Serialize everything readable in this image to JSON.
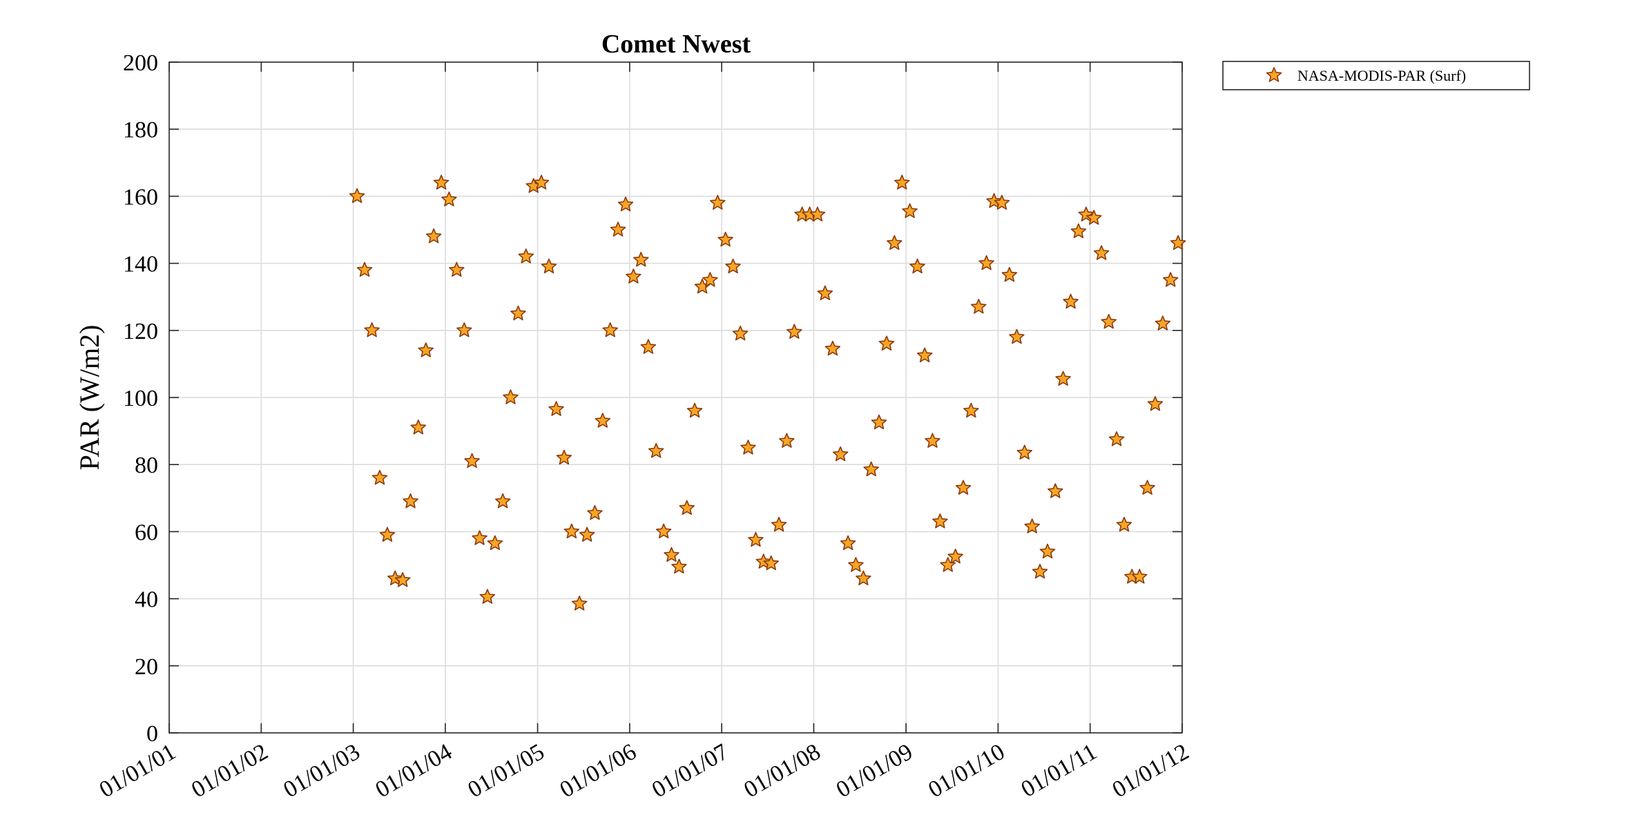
{
  "chart_data": {
    "type": "scatter",
    "title": "Comet Nwest",
    "xlabel": "",
    "ylabel": "PAR (W/m2)",
    "x_scale": "date",
    "xlim": [
      "2001-01-01",
      "2012-01-01"
    ],
    "ylim": [
      0,
      200
    ],
    "grid": true,
    "legend_position": "outside-top-right",
    "x_ticks": [
      {
        "value": "2001-01-01",
        "label": "01/01/01"
      },
      {
        "value": "2002-01-01",
        "label": "01/01/02"
      },
      {
        "value": "2003-01-01",
        "label": "01/01/03"
      },
      {
        "value": "2004-01-01",
        "label": "01/01/04"
      },
      {
        "value": "2005-01-01",
        "label": "01/01/05"
      },
      {
        "value": "2006-01-01",
        "label": "01/01/06"
      },
      {
        "value": "2007-01-01",
        "label": "01/01/07"
      },
      {
        "value": "2008-01-01",
        "label": "01/01/08"
      },
      {
        "value": "2009-01-01",
        "label": "01/01/09"
      },
      {
        "value": "2010-01-01",
        "label": "01/01/10"
      },
      {
        "value": "2011-01-01",
        "label": "01/01/11"
      },
      {
        "value": "2012-01-01",
        "label": "01/01/12"
      }
    ],
    "y_ticks": [
      {
        "value": 0,
        "label": "0"
      },
      {
        "value": 20,
        "label": "20"
      },
      {
        "value": 40,
        "label": "40"
      },
      {
        "value": 60,
        "label": "60"
      },
      {
        "value": 80,
        "label": "80"
      },
      {
        "value": 100,
        "label": "100"
      },
      {
        "value": 120,
        "label": "120"
      },
      {
        "value": 140,
        "label": "140"
      },
      {
        "value": 160,
        "label": "160"
      },
      {
        "value": 180,
        "label": "180"
      },
      {
        "value": 200,
        "label": "200"
      }
    ],
    "series": [
      {
        "name": "NASA-MODIS-PAR (Surf)",
        "marker": "star",
        "color": "#f7a525",
        "edge_color": "#8b3a0e",
        "points": [
          {
            "x": "2003-01-16",
            "y": 160
          },
          {
            "x": "2003-02-15",
            "y": 138
          },
          {
            "x": "2003-03-16",
            "y": 120
          },
          {
            "x": "2003-04-16",
            "y": 76
          },
          {
            "x": "2003-05-16",
            "y": 59
          },
          {
            "x": "2003-06-16",
            "y": 46
          },
          {
            "x": "2003-07-16",
            "y": 45.5
          },
          {
            "x": "2003-08-16",
            "y": 69
          },
          {
            "x": "2003-09-16",
            "y": 91
          },
          {
            "x": "2003-10-16",
            "y": 114
          },
          {
            "x": "2003-11-16",
            "y": 148
          },
          {
            "x": "2003-12-16",
            "y": 164
          },
          {
            "x": "2004-01-16",
            "y": 159
          },
          {
            "x": "2004-02-15",
            "y": 138
          },
          {
            "x": "2004-03-16",
            "y": 120
          },
          {
            "x": "2004-04-16",
            "y": 81
          },
          {
            "x": "2004-05-16",
            "y": 58
          },
          {
            "x": "2004-06-16",
            "y": 40.5
          },
          {
            "x": "2004-07-16",
            "y": 56.5
          },
          {
            "x": "2004-08-16",
            "y": 69
          },
          {
            "x": "2004-09-16",
            "y": 100
          },
          {
            "x": "2004-10-16",
            "y": 125
          },
          {
            "x": "2004-11-16",
            "y": 142
          },
          {
            "x": "2004-12-16",
            "y": 163
          },
          {
            "x": "2005-01-16",
            "y": 164
          },
          {
            "x": "2005-02-15",
            "y": 139
          },
          {
            "x": "2005-03-16",
            "y": 96.5
          },
          {
            "x": "2005-04-16",
            "y": 82
          },
          {
            "x": "2005-05-16",
            "y": 60
          },
          {
            "x": "2005-06-16",
            "y": 38.5
          },
          {
            "x": "2005-07-16",
            "y": 59
          },
          {
            "x": "2005-08-16",
            "y": 65.5
          },
          {
            "x": "2005-09-16",
            "y": 93
          },
          {
            "x": "2005-10-16",
            "y": 120
          },
          {
            "x": "2005-11-16",
            "y": 150
          },
          {
            "x": "2005-12-16",
            "y": 157.5
          },
          {
            "x": "2006-01-16",
            "y": 136
          },
          {
            "x": "2006-02-15",
            "y": 141
          },
          {
            "x": "2006-03-16",
            "y": 115
          },
          {
            "x": "2006-04-16",
            "y": 84
          },
          {
            "x": "2006-05-16",
            "y": 60
          },
          {
            "x": "2006-06-16",
            "y": 53
          },
          {
            "x": "2006-07-16",
            "y": 49.5
          },
          {
            "x": "2006-08-16",
            "y": 67
          },
          {
            "x": "2006-09-16",
            "y": 96
          },
          {
            "x": "2006-10-16",
            "y": 133
          },
          {
            "x": "2006-11-16",
            "y": 135
          },
          {
            "x": "2006-12-16",
            "y": 158
          },
          {
            "x": "2007-01-16",
            "y": 147
          },
          {
            "x": "2007-02-15",
            "y": 139
          },
          {
            "x": "2007-03-16",
            "y": 119
          },
          {
            "x": "2007-04-16",
            "y": 85
          },
          {
            "x": "2007-05-16",
            "y": 57.5
          },
          {
            "x": "2007-06-16",
            "y": 51
          },
          {
            "x": "2007-07-16",
            "y": 50.5
          },
          {
            "x": "2007-08-16",
            "y": 62
          },
          {
            "x": "2007-09-16",
            "y": 87
          },
          {
            "x": "2007-10-16",
            "y": 119.5
          },
          {
            "x": "2007-11-16",
            "y": 154.5
          },
          {
            "x": "2007-12-16",
            "y": 154.5
          },
          {
            "x": "2008-01-16",
            "y": 154.5
          },
          {
            "x": "2008-02-15",
            "y": 131
          },
          {
            "x": "2008-03-16",
            "y": 114.5
          },
          {
            "x": "2008-04-16",
            "y": 83
          },
          {
            "x": "2008-05-16",
            "y": 56.5
          },
          {
            "x": "2008-06-16",
            "y": 50
          },
          {
            "x": "2008-07-16",
            "y": 46
          },
          {
            "x": "2008-08-16",
            "y": 78.5
          },
          {
            "x": "2008-09-16",
            "y": 92.5
          },
          {
            "x": "2008-10-16",
            "y": 116
          },
          {
            "x": "2008-11-16",
            "y": 146
          },
          {
            "x": "2008-12-16",
            "y": 164
          },
          {
            "x": "2009-01-16",
            "y": 155.5
          },
          {
            "x": "2009-02-15",
            "y": 139
          },
          {
            "x": "2009-03-16",
            "y": 112.5
          },
          {
            "x": "2009-04-16",
            "y": 87
          },
          {
            "x": "2009-05-16",
            "y": 63
          },
          {
            "x": "2009-06-16",
            "y": 50
          },
          {
            "x": "2009-07-16",
            "y": 52.5
          },
          {
            "x": "2009-08-16",
            "y": 73
          },
          {
            "x": "2009-09-16",
            "y": 96
          },
          {
            "x": "2009-10-16",
            "y": 127
          },
          {
            "x": "2009-11-16",
            "y": 140
          },
          {
            "x": "2009-12-16",
            "y": 158.5
          },
          {
            "x": "2010-01-16",
            "y": 158
          },
          {
            "x": "2010-02-15",
            "y": 136.5
          },
          {
            "x": "2010-03-16",
            "y": 118
          },
          {
            "x": "2010-04-16",
            "y": 83.5
          },
          {
            "x": "2010-05-16",
            "y": 61.5
          },
          {
            "x": "2010-06-16",
            "y": 48
          },
          {
            "x": "2010-07-16",
            "y": 54
          },
          {
            "x": "2010-08-16",
            "y": 72
          },
          {
            "x": "2010-09-16",
            "y": 105.5
          },
          {
            "x": "2010-10-16",
            "y": 128.5
          },
          {
            "x": "2010-11-16",
            "y": 149.5
          },
          {
            "x": "2010-12-16",
            "y": 154.5
          },
          {
            "x": "2011-01-16",
            "y": 153.5
          },
          {
            "x": "2011-02-15",
            "y": 143
          },
          {
            "x": "2011-03-16",
            "y": 122.5
          },
          {
            "x": "2011-04-16",
            "y": 87.5
          },
          {
            "x": "2011-05-16",
            "y": 62
          },
          {
            "x": "2011-06-16",
            "y": 46.5
          },
          {
            "x": "2011-07-16",
            "y": 46.5
          },
          {
            "x": "2011-08-16",
            "y": 73
          },
          {
            "x": "2011-09-16",
            "y": 98
          },
          {
            "x": "2011-10-16",
            "y": 122
          },
          {
            "x": "2011-11-16",
            "y": 135
          },
          {
            "x": "2011-12-16",
            "y": 146
          }
        ]
      }
    ]
  }
}
